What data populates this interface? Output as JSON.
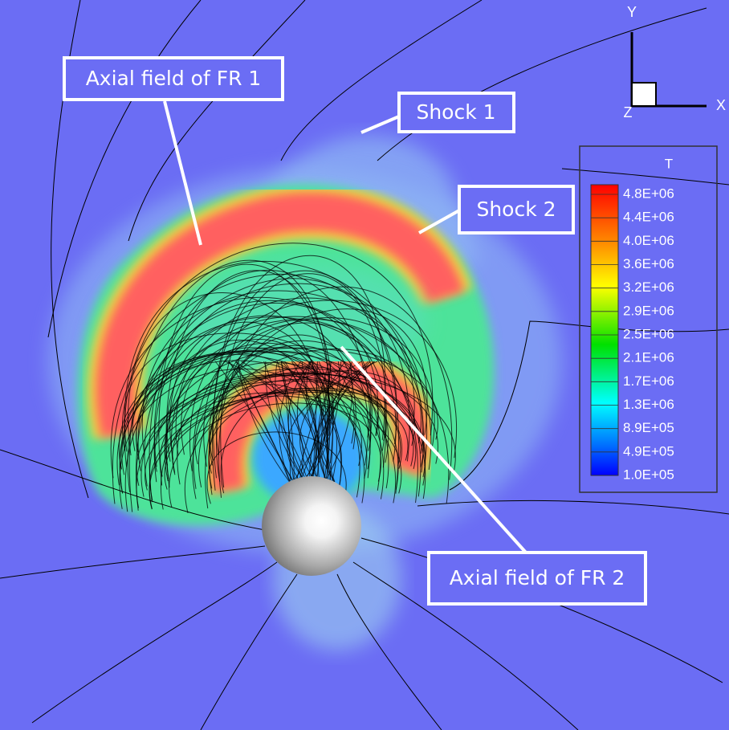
{
  "annotations": [
    "Axial field of FR 1",
    "Shock 1",
    "Shock 2",
    "Axial field of FR 2"
  ],
  "axes": {
    "x": "X",
    "y": "Y",
    "z": "Z"
  },
  "colorbar": {
    "title": "T",
    "labels": [
      "4.8E+06",
      "4.4E+06",
      "4.0E+06",
      "3.6E+06",
      "3.2E+06",
      "2.9E+06",
      "2.5E+06",
      "2.1E+06",
      "1.7E+06",
      "1.3E+06",
      "8.9E+05",
      "4.9E+05",
      "1.0E+05"
    ]
  }
}
